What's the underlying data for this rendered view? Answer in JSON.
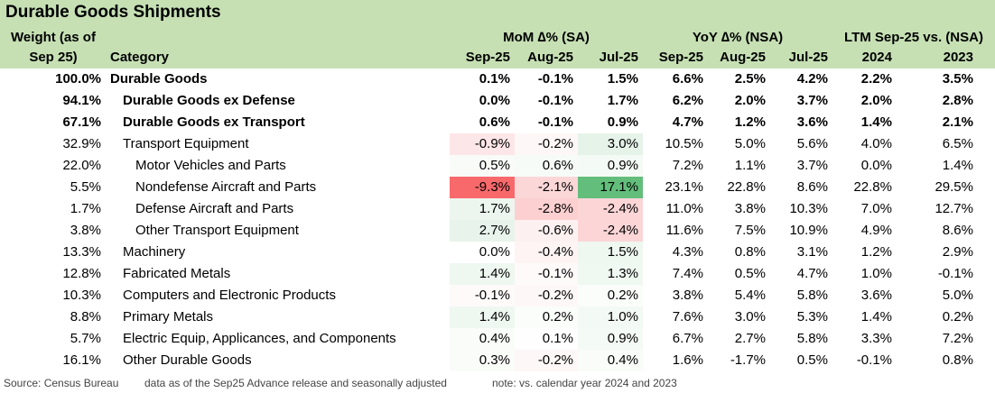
{
  "header": {
    "title": "Durable Goods Shipments",
    "weight_label": [
      "Weight (as of",
      "Sep 25)"
    ],
    "category_label": "Category",
    "groups": [
      "MoM ∆% (SA)",
      "YoY ∆% (NSA)",
      "LTM Sep-25 vs. (NSA)"
    ],
    "columns": [
      "Sep-25",
      "Aug-25",
      "Jul-25",
      "Sep-25",
      "Aug-25",
      "Jul-25",
      "2024",
      "2023"
    ]
  },
  "table": {
    "rows": [
      {
        "weight": "100.0%",
        "category": "Durable Goods",
        "level": 0,
        "bold": true,
        "cells": [
          "0.1%",
          "-0.1%",
          "1.5%",
          "6.6%",
          "2.5%",
          "4.2%",
          "2.2%",
          "3.5%"
        ],
        "shades": [
          "#ffffff",
          "#ffffff",
          "#ffffff"
        ]
      },
      {
        "weight": "94.1%",
        "category": "Durable Goods ex Defense",
        "level": 1,
        "bold": true,
        "cells": [
          "0.0%",
          "-0.1%",
          "1.7%",
          "6.2%",
          "2.0%",
          "3.7%",
          "2.0%",
          "2.8%"
        ],
        "shades": [
          "#ffffff",
          "#ffffff",
          "#ffffff"
        ]
      },
      {
        "weight": "67.1%",
        "category": "Durable Goods ex Transport",
        "level": 1,
        "bold": true,
        "cells": [
          "0.6%",
          "-0.1%",
          "0.9%",
          "4.7%",
          "1.2%",
          "3.6%",
          "1.4%",
          "2.1%"
        ],
        "shades": [
          "#ffffff",
          "#ffffff",
          "#ffffff"
        ]
      },
      {
        "weight": "32.9%",
        "category": "Transport Equipment",
        "level": 1,
        "bold": false,
        "cells": [
          "-0.9%",
          "-0.2%",
          "3.0%",
          "10.5%",
          "5.0%",
          "5.6%",
          "4.0%",
          "6.5%"
        ],
        "shades": [
          "#fde6e7",
          "#fef7f7",
          "#e5f3e8"
        ]
      },
      {
        "weight": "22.0%",
        "category": "Motor Vehicles and Parts",
        "level": 2,
        "bold": false,
        "cells": [
          "0.5%",
          "0.6%",
          "0.9%",
          "7.2%",
          "1.1%",
          "3.7%",
          "0.0%",
          "1.4%"
        ],
        "shades": [
          "#f8fbf8",
          "#f6fbf7",
          "#f4faf5"
        ]
      },
      {
        "weight": "5.5%",
        "category": "Nondefense Aircraft and Parts",
        "level": 2,
        "bold": false,
        "cells": [
          "-9.3%",
          "-2.1%",
          "17.1%",
          "23.1%",
          "22.8%",
          "8.6%",
          "22.8%",
          "29.5%"
        ],
        "shades": [
          "#f8696b",
          "#fcd7d8",
          "#63be7b"
        ]
      },
      {
        "weight": "1.7%",
        "category": "Defense Aircraft and Parts",
        "level": 2,
        "bold": false,
        "cells": [
          "1.7%",
          "-2.8%",
          "-2.4%",
          "11.0%",
          "3.8%",
          "10.3%",
          "7.0%",
          "12.7%"
        ],
        "shades": [
          "#ecf6ee",
          "#fcd0d1",
          "#fcd6d7"
        ]
      },
      {
        "weight": "3.8%",
        "category": "Other Transport Equipment",
        "level": 2,
        "bold": false,
        "cells": [
          "2.7%",
          "-0.6%",
          "-2.4%",
          "11.6%",
          "7.5%",
          "10.9%",
          "4.9%",
          "8.6%"
        ],
        "shades": [
          "#e8f4eb",
          "#fdf0f0",
          "#fcd6d7"
        ]
      },
      {
        "weight": "13.3%",
        "category": "Machinery",
        "level": 1,
        "bold": false,
        "cells": [
          "0.0%",
          "-0.4%",
          "1.5%",
          "4.3%",
          "0.8%",
          "3.1%",
          "1.2%",
          "2.9%"
        ],
        "shades": [
          "#ffffff",
          "#fef4f4",
          "#eef7f0"
        ]
      },
      {
        "weight": "12.8%",
        "category": "Fabricated Metals",
        "level": 1,
        "bold": false,
        "cells": [
          "1.4%",
          "-0.1%",
          "1.3%",
          "7.4%",
          "0.5%",
          "4.7%",
          "1.0%",
          "-0.1%"
        ],
        "shades": [
          "#eff7f1",
          "#fefafa",
          "#f0f8f2"
        ]
      },
      {
        "weight": "10.3%",
        "category": "Computers and Electronic Products",
        "level": 1,
        "bold": false,
        "cells": [
          "-0.1%",
          "-0.2%",
          "0.2%",
          "3.8%",
          "5.4%",
          "5.8%",
          "3.6%",
          "5.0%"
        ],
        "shades": [
          "#fefafa",
          "#fef7f7",
          "#fbfdfb"
        ]
      },
      {
        "weight": "8.8%",
        "category": "Primary Metals",
        "level": 1,
        "bold": false,
        "cells": [
          "1.4%",
          "0.2%",
          "1.0%",
          "7.6%",
          "3.0%",
          "5.3%",
          "1.4%",
          "0.2%"
        ],
        "shades": [
          "#eff7f1",
          "#fbfdfb",
          "#f3f9f4"
        ]
      },
      {
        "weight": "5.7%",
        "category": "Electric Equip, Applicances, and Components",
        "level": 1,
        "bold": false,
        "cells": [
          "0.4%",
          "0.1%",
          "0.9%",
          "6.7%",
          "2.7%",
          "5.8%",
          "3.3%",
          "7.2%"
        ],
        "shades": [
          "#f9fcf9",
          "#fdfefd",
          "#f4faf5"
        ]
      },
      {
        "weight": "16.1%",
        "category": "Other Durable Goods",
        "level": 1,
        "bold": false,
        "cells": [
          "0.3%",
          "-0.2%",
          "0.4%",
          "1.6%",
          "-1.7%",
          "0.5%",
          "-0.1%",
          "0.8%"
        ],
        "shades": [
          "#fafcfa",
          "#fef7f7",
          "#f9fcf9"
        ]
      }
    ]
  },
  "footer": [
    "Source: Census Bureau",
    "data as of the Sep25 Advance release and seasonally adjusted",
    "note: vs. calendar year 2024 and 2023"
  ]
}
